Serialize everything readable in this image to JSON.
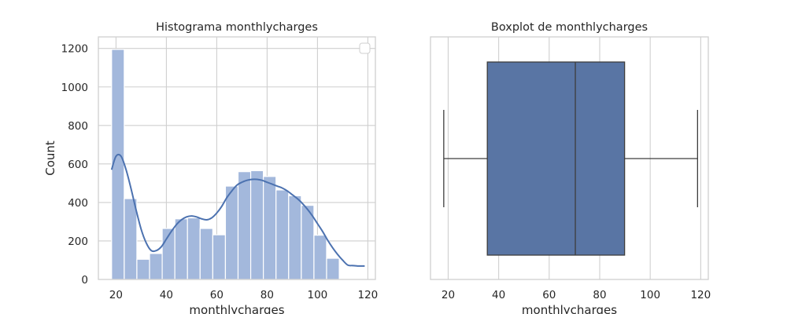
{
  "chart_data": [
    {
      "type": "bar",
      "title": "Histograma monthlycharges",
      "xlabel": "monthlycharges",
      "ylabel": "Count",
      "xlim": [
        13,
        123
      ],
      "ylim": [
        0,
        1260
      ],
      "xticks": [
        20,
        40,
        60,
        80,
        100,
        120
      ],
      "yticks": [
        0,
        200,
        400,
        600,
        800,
        1000,
        1200
      ],
      "grid": true,
      "legend_placement": "top-right",
      "bin_edges": [
        18.25,
        23.27,
        28.29,
        33.32,
        38.34,
        43.36,
        48.38,
        53.4,
        58.43,
        63.45,
        68.47,
        73.49,
        78.51,
        83.54,
        88.56,
        93.58,
        98.6,
        103.62,
        108.65,
        113.67,
        118.69
      ],
      "counts": [
        1195,
        420,
        105,
        135,
        265,
        315,
        320,
        265,
        232,
        485,
        560,
        565,
        535,
        465,
        435,
        385,
        230,
        110,
        0,
        0
      ],
      "bar_color": "#a3b8dc",
      "kde": {
        "x": [
          18.25,
          20,
          22,
          24,
          26,
          28,
          30,
          32,
          34,
          36,
          38,
          40,
          42,
          44,
          46,
          48,
          50,
          52,
          54,
          56,
          58,
          60,
          62,
          64,
          66,
          68,
          70,
          72,
          74,
          76,
          78,
          80,
          82,
          84,
          86,
          88,
          90,
          92,
          94,
          96,
          98,
          100,
          102,
          104,
          106,
          108,
          110,
          112,
          114,
          116,
          118.75
        ],
        "y": [
          570,
          640,
          640,
          570,
          470,
          360,
          260,
          190,
          150,
          150,
          170,
          210,
          250,
          285,
          310,
          325,
          330,
          325,
          315,
          310,
          320,
          345,
          380,
          425,
          460,
          490,
          505,
          515,
          520,
          520,
          515,
          505,
          495,
          485,
          475,
          460,
          440,
          420,
          395,
          365,
          330,
          290,
          250,
          205,
          165,
          130,
          100,
          75,
          72,
          70,
          70
        ],
        "color": "#4c72b0"
      }
    },
    {
      "type": "box",
      "title": "Boxplot de monthlycharges",
      "xlabel": "monthlycharges",
      "xlim": [
        13,
        123
      ],
      "xticks": [
        20,
        40,
        60,
        80,
        100,
        120
      ],
      "grid": true,
      "whisker_low": 18.25,
      "q1": 35.5,
      "median": 70.35,
      "q3": 89.85,
      "whisker_high": 118.75,
      "box_color": "#5975a4"
    }
  ]
}
